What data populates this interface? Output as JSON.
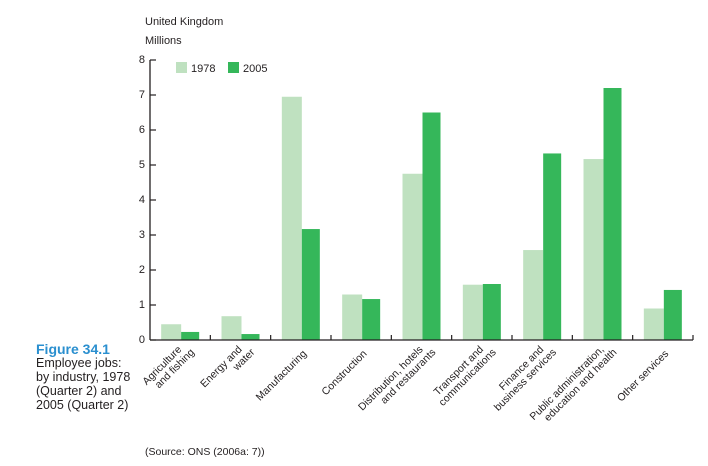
{
  "figure": {
    "number": "Figure 34.1",
    "caption": "Employee jobs: by industry, 1978 (Quarter 2) and 2005 (Quarter 2)",
    "source": "(Source: ONS (2006a: 7))"
  },
  "colors": {
    "series_1978": "#bfe1c0",
    "series_2005": "#35b75a",
    "axis": "#231f20",
    "figure_number": "#2a8fcf"
  },
  "chart_data": {
    "type": "bar",
    "title": "United Kingdom",
    "ylabel": "Millions",
    "xlabel": "",
    "ylim": [
      0,
      8
    ],
    "yticks": [
      0,
      1,
      2,
      3,
      4,
      5,
      6,
      7,
      8
    ],
    "grid": false,
    "legend_position": "top-left",
    "categories": [
      [
        "Agriculture",
        "and fishing"
      ],
      [
        "Energy and",
        "water"
      ],
      [
        "Manufacturing"
      ],
      [
        "Construction"
      ],
      [
        "Distribution, hotels",
        "and restaurants"
      ],
      [
        "Transport and",
        "communications"
      ],
      [
        "Finance and",
        "business services"
      ],
      [
        "Public administration,",
        "education and health"
      ],
      [
        "Other services"
      ]
    ],
    "series": [
      {
        "name": "1978",
        "values": [
          0.45,
          0.68,
          6.95,
          1.3,
          4.75,
          1.58,
          2.57,
          5.17,
          0.9
        ]
      },
      {
        "name": "2005",
        "values": [
          0.23,
          0.17,
          3.17,
          1.17,
          6.5,
          1.6,
          5.33,
          7.2,
          1.43
        ]
      }
    ]
  }
}
